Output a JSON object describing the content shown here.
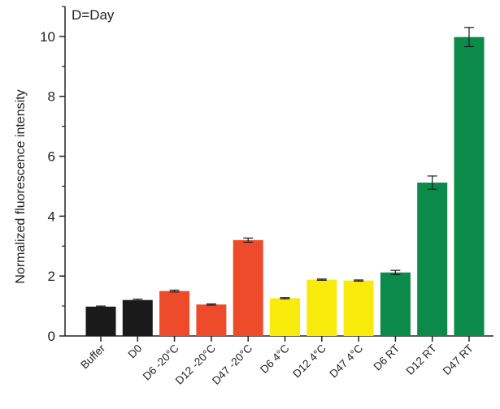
{
  "chart_data": {
    "type": "bar",
    "title": "",
    "annotation": "D=Day",
    "xlabel": "",
    "ylabel": "Normalized fluorescence intensity",
    "ylim": [
      0,
      11
    ],
    "yticks": [
      0,
      2,
      4,
      6,
      8,
      10
    ],
    "grid": false,
    "categories": [
      "Buffer",
      "D0",
      "D6 -20°C",
      "D12 -20°C",
      "D47 -20°C",
      "D6 4°C",
      "D12 4°C",
      "D47 4°C",
      "D6 RT",
      "D12 RT",
      "D47 RT"
    ],
    "values": [
      0.98,
      1.2,
      1.5,
      1.05,
      3.2,
      1.26,
      1.88,
      1.85,
      2.12,
      5.12,
      9.98
    ],
    "errors": [
      0.02,
      0.03,
      0.03,
      0.02,
      0.07,
      0.02,
      0.02,
      0.02,
      0.07,
      0.22,
      0.32
    ],
    "colors": [
      "#1a1a1a",
      "#1a1a1a",
      "#ee4b2b",
      "#ee4b2b",
      "#ee4b2b",
      "#f8ea0a",
      "#f8ea0a",
      "#f8ea0a",
      "#0b8a4a",
      "#0b8a4a",
      "#0b8a4a"
    ],
    "axis_color": "#222222"
  }
}
